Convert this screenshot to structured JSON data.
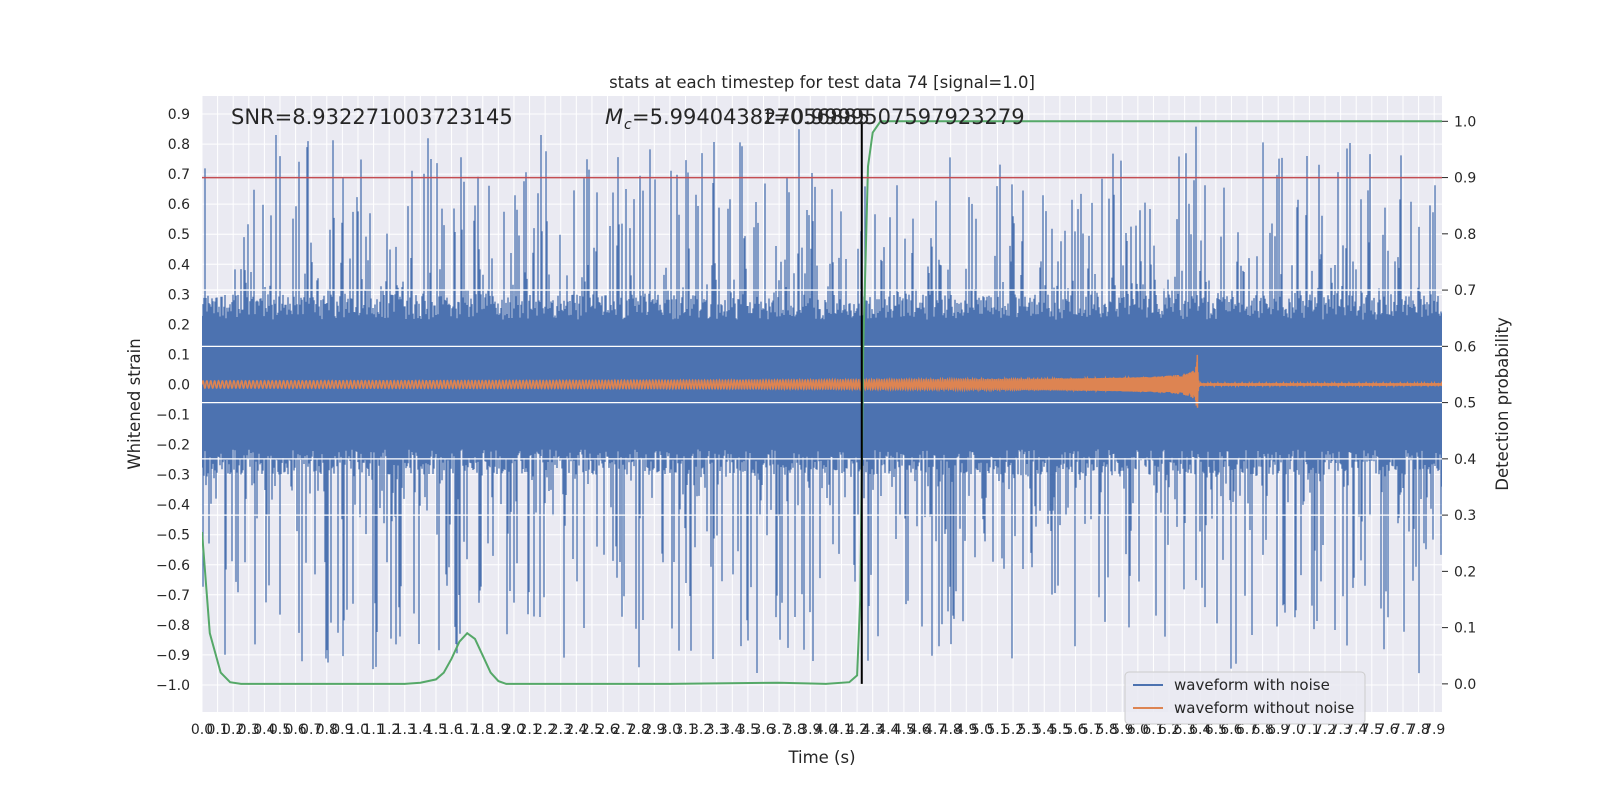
{
  "chart_data": {
    "type": "line",
    "title": "stats at each timestep for test data 74 [signal=1.0]",
    "xlabel": "Time (s)",
    "ylabel_left": "Whitened strain",
    "ylabel_right": "Detection probability",
    "xlim": [
      0.0,
      7.95
    ],
    "ylim_left": [
      -1.09,
      0.96
    ],
    "ylim_right": [
      -0.05,
      1.045
    ],
    "x_ticks": [
      0.0,
      0.1,
      0.2,
      0.3,
      0.4,
      0.5,
      0.6,
      0.7,
      0.8,
      0.9,
      1.0,
      1.1,
      1.2,
      1.3,
      1.4,
      1.5,
      1.6,
      1.7,
      1.8,
      1.9,
      2.0,
      2.1,
      2.2,
      2.3,
      2.4,
      2.5,
      2.6,
      2.7,
      2.8,
      2.9,
      3.0,
      3.1,
      3.2,
      3.3,
      3.4,
      3.5,
      3.6,
      3.7,
      3.8,
      3.9,
      4.0,
      4.1,
      4.2,
      4.3,
      4.4,
      4.5,
      4.6,
      4.7,
      4.8,
      4.9,
      5.0,
      5.1,
      5.2,
      5.3,
      5.4,
      5.5,
      5.6,
      5.7,
      5.8,
      5.9,
      6.0,
      6.1,
      6.2,
      6.3,
      6.4,
      6.5,
      6.6,
      6.7,
      6.8,
      6.9,
      7.0,
      7.1,
      7.2,
      7.3,
      7.4,
      7.5,
      7.6,
      7.7,
      7.8,
      7.9
    ],
    "x_tick_labels": [
      "0.0",
      "0.1",
      "0.2",
      "0.3",
      "0.4",
      "0.5",
      "0.6",
      "0.7",
      "0.8",
      "0.9",
      "1.0",
      "1.1",
      "1.2",
      "1.3",
      "1.4",
      "1.5",
      "1.6",
      "1.7",
      "1.8",
      "1.9",
      "2.0",
      "2.1",
      "2.2",
      "2.3",
      "2.4",
      "2.5",
      "2.6",
      "2.7",
      "2.8",
      "2.9",
      "3.0",
      "3.1",
      "3.2",
      "3.3",
      "3.4",
      "3.5",
      "3.6",
      "3.7",
      "3.8",
      "3.9",
      "4.0",
      "4.1",
      "4.2",
      "4.3",
      "4.4",
      "4.5",
      "4.6",
      "4.7",
      "4.8",
      "4.9",
      "5.0",
      "5.1",
      "5.2",
      "5.3",
      "5.4",
      "5.5",
      "5.6",
      "5.7",
      "5.8",
      "5.9",
      "6.0",
      "6.1",
      "6.2",
      "6.3",
      "6.4",
      "6.5",
      "6.6",
      "6.7",
      "6.8",
      "6.9",
      "7.0",
      "7.1",
      "7.2",
      "7.3",
      "7.4",
      "7.5",
      "7.6",
      "7.7",
      "7.8",
      "7.9"
    ],
    "y_ticks_left": [
      0.9,
      0.8,
      0.7,
      0.6,
      0.5,
      0.4,
      0.3,
      0.2,
      0.1,
      0.0,
      -0.1,
      -0.2,
      -0.3,
      -0.4,
      -0.5,
      -0.6,
      -0.7,
      -0.8,
      -0.9,
      -1.0
    ],
    "y_tick_labels_left": [
      "0.9",
      "0.8",
      "0.7",
      "0.6",
      "0.5",
      "0.4",
      "0.3",
      "0.2",
      "0.1",
      "0.0",
      "−0.1",
      "−0.2",
      "−0.3",
      "−0.4",
      "−0.5",
      "−0.6",
      "−0.7",
      "−0.8",
      "−0.9",
      "−1.0"
    ],
    "y_ticks_right": [
      1.0,
      0.9,
      0.8,
      0.7,
      0.6,
      0.5,
      0.4,
      0.3,
      0.2,
      0.1,
      0.0
    ],
    "y_tick_labels_right": [
      "1.0",
      "0.9",
      "0.8",
      "0.7",
      "0.6",
      "0.5",
      "0.4",
      "0.3",
      "0.2",
      "0.1",
      "0.0"
    ],
    "annotations": {
      "snr": "SNR=8.932271003723145",
      "mc_symbol": "M",
      "mc_subscript": "c",
      "mc_value": "=5.994043827056885",
      "overlap_value": "t=0.9999507597923279"
    },
    "threshold_line": {
      "axis": "right",
      "value": 0.9,
      "color": "#c44e52"
    },
    "marker_line": {
      "x": 4.23,
      "color": "#000000"
    },
    "right_axis_gridlines": [
      0.7,
      0.6,
      0.5,
      0.4,
      0.3
    ],
    "series": [
      {
        "name": "waveform with noise",
        "axis": "left",
        "color": "#4c72b0",
        "description": "dense noise band, core approx ±0.3, spikes up to 0.87 and down to -0.99",
        "noise_core_amplitude": 0.3,
        "spike_max": 0.87,
        "spike_min": -0.99,
        "seed": 74
      },
      {
        "name": "waveform without noise",
        "axis": "left",
        "color": "#dd8452",
        "description": "chirp: amplitude ~0.01 at t=0 growing to ~0.2 at merger t=6.38, then ~0",
        "amp_start": 0.012,
        "amp_peak": 0.2,
        "merger_time": 6.38,
        "freq_start_hz": 40
      },
      {
        "name": "Detection probability",
        "axis": "right",
        "color": "#55a868",
        "x": [
          0.0,
          0.05,
          0.12,
          0.18,
          0.25,
          0.5,
          1.0,
          1.3,
          1.4,
          1.5,
          1.55,
          1.6,
          1.65,
          1.7,
          1.75,
          1.8,
          1.85,
          1.9,
          1.95,
          2.0,
          2.1,
          2.5,
          3.0,
          3.7,
          4.0,
          4.15,
          4.2,
          4.22,
          4.24,
          4.27,
          4.3,
          4.35,
          6.0,
          7.95
        ],
        "y": [
          0.27,
          0.09,
          0.02,
          0.003,
          0.0,
          0.0,
          0.0,
          0.0,
          0.002,
          0.008,
          0.02,
          0.045,
          0.075,
          0.09,
          0.08,
          0.05,
          0.02,
          0.005,
          0.0,
          0.0,
          0.0,
          0.0,
          0.0,
          0.002,
          0.0,
          0.003,
          0.015,
          0.15,
          0.6,
          0.92,
          0.98,
          1.0,
          1.0,
          1.0
        ]
      }
    ],
    "legend": {
      "position": "bottom-right",
      "entries": [
        {
          "label": "waveform with noise",
          "color": "#4c72b0"
        },
        {
          "label": "waveform without noise",
          "color": "#dd8452"
        }
      ]
    }
  }
}
